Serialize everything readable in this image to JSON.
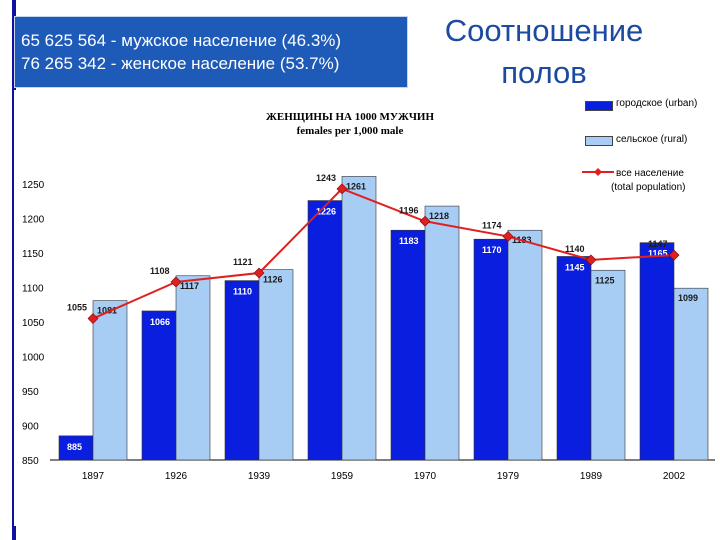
{
  "stats": {
    "line1": "65 625 564  - мужское население (46.3%)",
    "line2": "76 265 342  - женское население (53.7%)"
  },
  "title": {
    "line1": "Соотношение",
    "line2": "полов"
  },
  "colors": {
    "urban": "#0a1ee0",
    "rural": "#a8cdf5",
    "total": "#e02020",
    "stats_bg": "#1e5bb8",
    "title": "#1b4aa0"
  },
  "chart_data": {
    "type": "bar",
    "title": "ЖЕНЩИНЫ НА 1000 МУЖЧИН",
    "subtitle": "females per 1,000 male",
    "categories": [
      "1897",
      "1926",
      "1939",
      "1959",
      "1970",
      "1979",
      "1989",
      "2002"
    ],
    "ylim": [
      850,
      1250
    ],
    "yticks": [
      "1250",
      "1200",
      "1150",
      "1100",
      "1050",
      "1000",
      "950",
      "900",
      "850"
    ],
    "series": [
      {
        "name": "городское (urban)",
        "type": "bar",
        "values": [
          885,
          1066,
          1110,
          1226,
          1183,
          1170,
          1145,
          1165
        ],
        "labels": [
          "885",
          "1066",
          "1110",
          "1226",
          "1183",
          "1170",
          "1145",
          "1165"
        ]
      },
      {
        "name": "сельское (rural)",
        "type": "bar",
        "values": [
          1081,
          1117,
          1126,
          1261,
          1218,
          1183,
          1125,
          1099
        ],
        "labels": [
          "1081",
          "1117",
          "1126",
          "1261",
          "1218",
          "1183",
          "1125",
          "1099"
        ]
      },
      {
        "name": "все население (total population)",
        "type": "line",
        "values": [
          1055,
          1108,
          1121,
          1243,
          1196,
          1174,
          1140,
          1147
        ],
        "labels": [
          "1055",
          "1108",
          "1121",
          "1243",
          "1196",
          "1174",
          "1140",
          "1147"
        ]
      }
    ],
    "grid": false,
    "legend_position": "right"
  },
  "legend": {
    "urban": "городское (urban)",
    "rural": "сельское (rural)",
    "total1": "все население",
    "total2": "(total population)"
  }
}
